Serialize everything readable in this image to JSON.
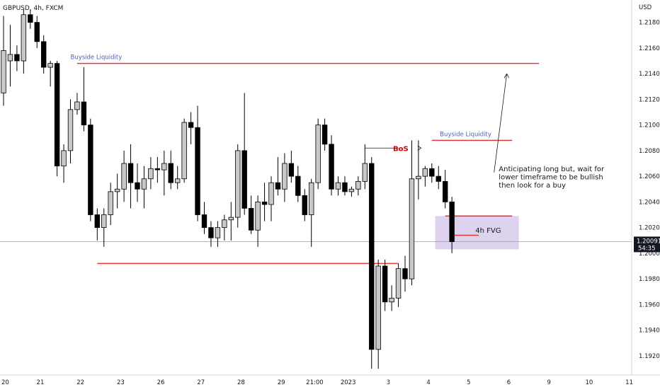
{
  "header": {
    "symbol": "GBPUSD, 4h, FXCM",
    "currency": "USD"
  },
  "price_badge": {
    "price": "1.20091",
    "countdown": "54:35"
  },
  "annotations": {
    "buyside_liquidity_1": "Buyside Liquidity",
    "buyside_liquidity_2": "Buyside Liquidity",
    "bos": "BoS",
    "fvg": "4h FVG",
    "note_lines": [
      "Anticipating long but, wait for",
      "lower timeframe to be bullish",
      "then look for a buy"
    ]
  },
  "colors": {
    "bull_fill": "#c8c8c8",
    "bear_fill": "#000000",
    "candle_outline": "#000000",
    "level_line": "#e53935",
    "annotation_blue": "#4a5fc1",
    "fvg_zone": "#d1c4e9",
    "price_badge": "#131722"
  },
  "chart_data": {
    "type": "candlestick",
    "symbol": "GBPUSD",
    "timeframe": "4h",
    "y_range": [
      1.191,
      1.219
    ],
    "y_ticks": [
      "1.19200",
      "1.19400",
      "1.19600",
      "1.19800",
      "1.20000",
      "1.20200",
      "1.20400",
      "1.20600",
      "1.20800",
      "1.21000",
      "1.21200",
      "1.21400",
      "1.21600",
      "1.21800"
    ],
    "x_ticks": [
      {
        "label": "20",
        "bar": -0.5
      },
      {
        "label": "21",
        "bar": 5.5
      },
      {
        "label": "22",
        "bar": 11.5
      },
      {
        "label": "23",
        "bar": 17.5
      },
      {
        "label": "26",
        "bar": 23.5
      },
      {
        "label": "27",
        "bar": 29.5
      },
      {
        "label": "28",
        "bar": 35.5
      },
      {
        "label": "29",
        "bar": 41.5
      },
      {
        "label": "21:00",
        "bar": 46.5
      },
      {
        "label": "2023",
        "bar": 51.5
      },
      {
        "label": "3",
        "bar": 57.5
      },
      {
        "label": "4",
        "bar": 63.5
      },
      {
        "label": "5",
        "bar": 69.5
      },
      {
        "label": "6",
        "bar": 75.5
      },
      {
        "label": "9",
        "bar": 81.5
      },
      {
        "label": "10",
        "bar": 87.5
      },
      {
        "label": "11",
        "bar": 93.5
      }
    ],
    "candles": [
      {
        "o": 1.2125,
        "h": 1.2185,
        "l": 1.2115,
        "c": 1.2158
      },
      {
        "o": 1.215,
        "h": 1.2178,
        "l": 1.213,
        "c": 1.2155
      },
      {
        "o": 1.2155,
        "h": 1.2162,
        "l": 1.2142,
        "c": 1.215
      },
      {
        "o": 1.215,
        "h": 1.219,
        "l": 1.214,
        "c": 1.2186
      },
      {
        "o": 1.2186,
        "h": 1.219,
        "l": 1.2175,
        "c": 1.218
      },
      {
        "o": 1.218,
        "h": 1.2185,
        "l": 1.216,
        "c": 1.2165
      },
      {
        "o": 1.2165,
        "h": 1.217,
        "l": 1.214,
        "c": 1.2145
      },
      {
        "o": 1.2145,
        "h": 1.215,
        "l": 1.213,
        "c": 1.2148
      },
      {
        "o": 1.2148,
        "h": 1.215,
        "l": 1.206,
        "c": 1.2068
      },
      {
        "o": 1.2068,
        "h": 1.2085,
        "l": 1.2055,
        "c": 1.208
      },
      {
        "o": 1.208,
        "h": 1.212,
        "l": 1.207,
        "c": 1.2112
      },
      {
        "o": 1.2112,
        "h": 1.2125,
        "l": 1.2108,
        "c": 1.2118
      },
      {
        "o": 1.2118,
        "h": 1.2145,
        "l": 1.2095,
        "c": 1.21
      },
      {
        "o": 1.21,
        "h": 1.2105,
        "l": 1.2025,
        "c": 1.203
      },
      {
        "o": 1.203,
        "h": 1.2035,
        "l": 1.201,
        "c": 1.202
      },
      {
        "o": 1.202,
        "h": 1.2035,
        "l": 1.2005,
        "c": 1.203
      },
      {
        "o": 1.203,
        "h": 1.2055,
        "l": 1.2022,
        "c": 1.2048
      },
      {
        "o": 1.2048,
        "h": 1.2062,
        "l": 1.2035,
        "c": 1.205
      },
      {
        "o": 1.205,
        "h": 1.208,
        "l": 1.204,
        "c": 1.207
      },
      {
        "o": 1.207,
        "h": 1.2085,
        "l": 1.2035,
        "c": 1.2055
      },
      {
        "o": 1.2055,
        "h": 1.207,
        "l": 1.204,
        "c": 1.205
      },
      {
        "o": 1.205,
        "h": 1.2068,
        "l": 1.2035,
        "c": 1.2058
      },
      {
        "o": 1.2058,
        "h": 1.2075,
        "l": 1.205,
        "c": 1.2066
      },
      {
        "o": 1.2066,
        "h": 1.2075,
        "l": 1.2055,
        "c": 1.2065
      },
      {
        "o": 1.2065,
        "h": 1.208,
        "l": 1.2045,
        "c": 1.207
      },
      {
        "o": 1.207,
        "h": 1.208,
        "l": 1.205,
        "c": 1.2055
      },
      {
        "o": 1.2055,
        "h": 1.2068,
        "l": 1.205,
        "c": 1.2058
      },
      {
        "o": 1.2058,
        "h": 1.2105,
        "l": 1.2055,
        "c": 1.2102
      },
      {
        "o": 1.2102,
        "h": 1.211,
        "l": 1.2085,
        "c": 1.2098
      },
      {
        "o": 1.2098,
        "h": 1.2115,
        "l": 1.2025,
        "c": 1.203
      },
      {
        "o": 1.203,
        "h": 1.204,
        "l": 1.2015,
        "c": 1.202
      },
      {
        "o": 1.202,
        "h": 1.2025,
        "l": 1.2005,
        "c": 1.2012
      },
      {
        "o": 1.2012,
        "h": 1.2025,
        "l": 1.2005,
        "c": 1.202
      },
      {
        "o": 1.202,
        "h": 1.203,
        "l": 1.201,
        "c": 1.2026
      },
      {
        "o": 1.2026,
        "h": 1.204,
        "l": 1.201,
        "c": 1.2028
      },
      {
        "o": 1.2028,
        "h": 1.2085,
        "l": 1.202,
        "c": 1.208
      },
      {
        "o": 1.208,
        "h": 1.2125,
        "l": 1.203,
        "c": 1.2035
      },
      {
        "o": 1.2035,
        "h": 1.2045,
        "l": 1.2015,
        "c": 1.2018
      },
      {
        "o": 1.2018,
        "h": 1.2045,
        "l": 1.2005,
        "c": 1.204
      },
      {
        "o": 1.204,
        "h": 1.2055,
        "l": 1.2025,
        "c": 1.2038
      },
      {
        "o": 1.2038,
        "h": 1.206,
        "l": 1.2025,
        "c": 1.2055
      },
      {
        "o": 1.2055,
        "h": 1.2075,
        "l": 1.2045,
        "c": 1.205
      },
      {
        "o": 1.205,
        "h": 1.2078,
        "l": 1.204,
        "c": 1.207
      },
      {
        "o": 1.207,
        "h": 1.208,
        "l": 1.2055,
        "c": 1.206
      },
      {
        "o": 1.206,
        "h": 1.2068,
        "l": 1.204,
        "c": 1.2045
      },
      {
        "o": 1.2045,
        "h": 1.205,
        "l": 1.2025,
        "c": 1.203
      },
      {
        "o": 1.203,
        "h": 1.2058,
        "l": 1.2005,
        "c": 1.2055
      },
      {
        "o": 1.2055,
        "h": 1.2105,
        "l": 1.205,
        "c": 1.21
      },
      {
        "o": 1.21,
        "h": 1.2105,
        "l": 1.208,
        "c": 1.2085
      },
      {
        "o": 1.2085,
        "h": 1.2092,
        "l": 1.2045,
        "c": 1.205
      },
      {
        "o": 1.205,
        "h": 1.206,
        "l": 1.2045,
        "c": 1.2055
      },
      {
        "o": 1.2055,
        "h": 1.206,
        "l": 1.2045,
        "c": 1.2048
      },
      {
        "o": 1.2048,
        "h": 1.2052,
        "l": 1.2044,
        "c": 1.205
      },
      {
        "o": 1.205,
        "h": 1.206,
        "l": 1.2045,
        "c": 1.2056
      },
      {
        "o": 1.2056,
        "h": 1.2085,
        "l": 1.205,
        "c": 1.207
      },
      {
        "o": 1.207,
        "h": 1.2075,
        "l": 1.191,
        "c": 1.1925
      },
      {
        "o": 1.1925,
        "h": 1.1995,
        "l": 1.191,
        "c": 1.199
      },
      {
        "o": 1.199,
        "h": 1.1995,
        "l": 1.1955,
        "c": 1.1962
      },
      {
        "o": 1.1962,
        "h": 1.1975,
        "l": 1.1955,
        "c": 1.1965
      },
      {
        "o": 1.1965,
        "h": 1.1992,
        "l": 1.1958,
        "c": 1.1988
      },
      {
        "o": 1.1988,
        "h": 1.1998,
        "l": 1.197,
        "c": 1.198
      },
      {
        "o": 1.198,
        "h": 1.2088,
        "l": 1.1975,
        "c": 1.2058
      },
      {
        "o": 1.2058,
        "h": 1.2088,
        "l": 1.2042,
        "c": 1.206
      },
      {
        "o": 1.206,
        "h": 1.2068,
        "l": 1.2052,
        "c": 1.2066
      },
      {
        "o": 1.2066,
        "h": 1.207,
        "l": 1.2055,
        "c": 1.206
      },
      {
        "o": 1.206,
        "h": 1.2068,
        "l": 1.205,
        "c": 1.2056
      },
      {
        "o": 1.2056,
        "h": 1.2065,
        "l": 1.2035,
        "c": 1.204
      },
      {
        "o": 1.204,
        "h": 1.2044,
        "l": 1.2,
        "c": 1.2009
      }
    ],
    "levels": [
      {
        "name": "buyside-liquidity-1",
        "price": 1.2148,
        "from_bar": 11,
        "to_bar": 80
      },
      {
        "name": "buyside-liquidity-2",
        "price": 1.2088,
        "from_bar": 64,
        "to_bar": 76
      },
      {
        "name": "bos",
        "price": 1.2082,
        "from_bar": 54,
        "to_bar": 59
      },
      {
        "name": "sell-side-low",
        "price": 1.1992,
        "from_bar": 14,
        "to_bar": 59
      },
      {
        "name": "fvg-top",
        "price": 1.2029,
        "from_bar": 66,
        "to_bar": 76
      },
      {
        "name": "fvg-bottom",
        "price": 1.2014,
        "from_bar": 67,
        "to_bar": 71
      }
    ],
    "fvg_zone": {
      "top": 1.2029,
      "bottom": 1.2003,
      "from_bar": 64.5,
      "to_bar": 77
    },
    "current_price": 1.20091
  }
}
